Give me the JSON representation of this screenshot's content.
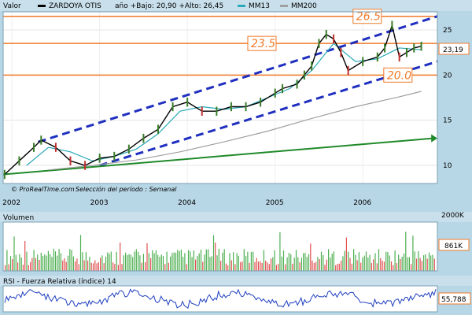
{
  "header": {
    "valor_label": "Valor",
    "symbol": "ZARDOYA OTIS",
    "range_text": "año +Bajo: 20,90 +Alto: 26,45",
    "ma13_label": "MM13",
    "ma200_label": "MM200"
  },
  "watermark": {
    "brand": "© ProRealTime.com",
    "period_text": "Selección del período : Semanal"
  },
  "volume_panel": {
    "title": "Volumen",
    "max_label": "2000K",
    "current_label": "861K"
  },
  "rsi_panel": {
    "title": "RSI - Fuerza Relativa (índice) 14",
    "current_label": "55,788"
  },
  "price_tag": "23,19",
  "annotations": {
    "level_high": "26.5",
    "level_mid": "23.5",
    "level_low": "20.0"
  },
  "colors": {
    "price_line": "#000000",
    "candle_up": "#3a7d2a",
    "candle_down": "#c03030",
    "ma13": "#2aa9b8",
    "ma200": "#a0a0a0",
    "channel": "#1f2fbf",
    "trendline": "#1f8a2a",
    "resistance": "#f07a2a",
    "volume_up": "#4caf50",
    "volume_down": "#e05050",
    "rsi_line": "#1f3fbf"
  },
  "chart_data": [
    {
      "type": "line",
      "title": "ZARDOYA OTIS",
      "x_ticks": [
        "2002",
        "2003",
        "2004",
        "2005",
        "2006"
      ],
      "y_ticks": [
        10,
        15,
        20,
        25
      ],
      "ylim": [
        8,
        27
      ],
      "series": [
        {
          "name": "ZARDOYA OTIS",
          "x": [
            "2001-12",
            "2002-02",
            "2002-04",
            "2002-05",
            "2002-07",
            "2002-09",
            "2002-11",
            "2003-01",
            "2003-03",
            "2003-05",
            "2003-07",
            "2003-09",
            "2003-11",
            "2004-01",
            "2004-03",
            "2004-05",
            "2004-07",
            "2004-09",
            "2004-11",
            "2005-01",
            "2005-02",
            "2005-04",
            "2005-05",
            "2005-06",
            "2005-07",
            "2005-08",
            "2005-09",
            "2005-10",
            "2005-11",
            "2006-01",
            "2006-03",
            "2006-04",
            "2006-05",
            "2006-06",
            "2006-07",
            "2006-08",
            "2006-09"
          ],
          "values": [
            9.0,
            10.5,
            12.0,
            12.8,
            12.0,
            10.5,
            10.0,
            10.8,
            11.0,
            11.8,
            13.0,
            14.0,
            16.5,
            17.0,
            16.0,
            16.0,
            16.5,
            16.5,
            17.0,
            18.0,
            18.5,
            19.0,
            20.0,
            21.0,
            23.5,
            24.5,
            24.0,
            22.5,
            20.5,
            21.5,
            22.0,
            23.0,
            25.5,
            22.0,
            22.5,
            23.0,
            23.19
          ]
        },
        {
          "name": "MM13",
          "x": [
            "2002-03",
            "2002-06",
            "2002-09",
            "2002-12",
            "2003-03",
            "2003-06",
            "2003-09",
            "2003-12",
            "2004-03",
            "2004-06",
            "2004-09",
            "2004-12",
            "2005-03",
            "2005-06",
            "2005-09",
            "2005-12",
            "2006-03",
            "2006-06",
            "2006-09"
          ],
          "values": [
            10.0,
            12.0,
            11.5,
            10.5,
            11.0,
            11.8,
            13.5,
            16.0,
            16.5,
            16.2,
            16.5,
            17.5,
            18.5,
            20.5,
            23.5,
            21.5,
            21.8,
            23.0,
            22.8
          ]
        },
        {
          "name": "MM200",
          "x": [
            "2002-06",
            "2002-12",
            "2003-06",
            "2003-12",
            "2004-06",
            "2004-12",
            "2005-06",
            "2005-12",
            "2006-06",
            "2006-09"
          ],
          "values": [
            9.5,
            10.0,
            10.6,
            11.5,
            12.6,
            13.8,
            15.2,
            16.5,
            17.6,
            18.2
          ]
        }
      ],
      "resistance_levels": [
        26.5,
        23.5,
        20.0
      ]
    },
    {
      "type": "bar",
      "title": "Volumen",
      "y_ticks": [
        "2000K"
      ],
      "current_value": "861K"
    },
    {
      "type": "line",
      "title": "RSI - Fuerza Relativa (índice) 14",
      "current_value": 55.788
    }
  ]
}
